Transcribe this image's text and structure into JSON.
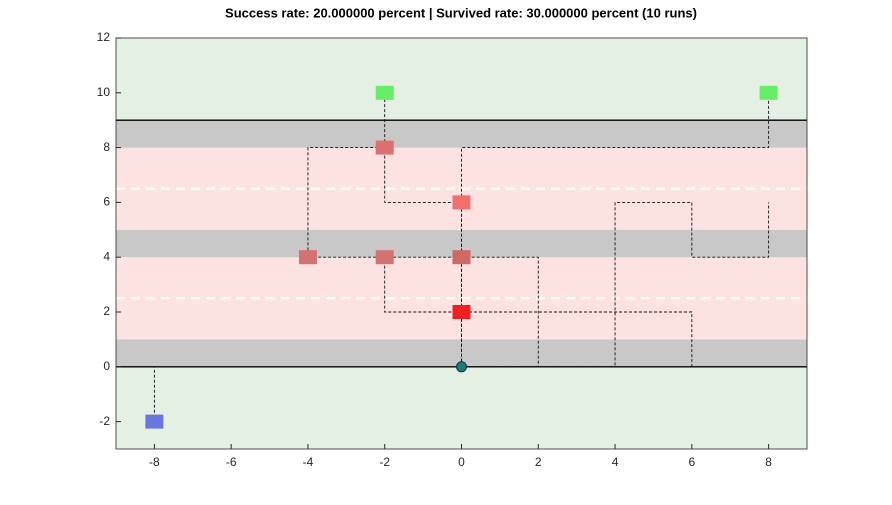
{
  "chart_data": {
    "type": "scatter",
    "title": "Success rate: 20.000000 percent | Survived rate: 30.000000 percent (10 runs)",
    "xlim": [
      -9,
      9
    ],
    "ylim": [
      -3,
      12
    ],
    "xticks": [
      -8,
      -6,
      -4,
      -2,
      0,
      2,
      4,
      6,
      8
    ],
    "yticks": [
      -2,
      0,
      2,
      4,
      6,
      8,
      10,
      12
    ],
    "background": "#e4f0e4",
    "regions": [
      {
        "y": [
          0,
          1
        ],
        "color": "#c8c8c8"
      },
      {
        "y": [
          1,
          4
        ],
        "color": "#fde2e2"
      },
      {
        "y": [
          4,
          5
        ],
        "color": "#c8c8c8"
      },
      {
        "y": [
          5,
          8
        ],
        "color": "#fde2e2"
      },
      {
        "y": [
          8,
          9
        ],
        "color": "#c8c8c8"
      }
    ],
    "dashed_lines": [
      2.5,
      6.5
    ],
    "solid_lines": [
      0,
      9
    ],
    "paths": [
      {
        "x": [
          0,
          0,
          0,
          0,
          0,
          8,
          8
        ],
        "y": [
          0,
          2,
          4,
          6,
          8,
          8,
          10
        ]
      },
      {
        "x": [
          0,
          0,
          0,
          -4,
          -4,
          -2,
          -2
        ],
        "y": [
          0,
          2,
          4,
          4,
          8,
          8,
          10
        ]
      },
      {
        "x": [
          0,
          0,
          -2,
          -2
        ],
        "y": [
          0,
          2,
          2,
          4
        ]
      },
      {
        "x": [
          0,
          0,
          0,
          0,
          -2,
          -2
        ],
        "y": [
          0,
          2,
          4,
          6,
          6,
          8
        ]
      },
      {
        "x": [
          0,
          2,
          2,
          0
        ],
        "y": [
          0,
          0,
          4,
          4
        ]
      },
      {
        "x": [
          0,
          6,
          6,
          0
        ],
        "y": [
          0,
          0,
          2,
          2
        ]
      },
      {
        "x": [
          0,
          4,
          4,
          6,
          6,
          8,
          8
        ],
        "y": [
          0,
          0,
          6,
          6,
          4,
          4,
          6
        ]
      },
      {
        "x": [
          0,
          -8,
          -8
        ],
        "y": [
          0,
          0,
          -2
        ]
      }
    ],
    "points": [
      {
        "x": -2,
        "y": 10,
        "color": "#66ee66",
        "shape": "square"
      },
      {
        "x": 8,
        "y": 10,
        "color": "#66ee66",
        "shape": "square"
      },
      {
        "x": -2,
        "y": 8,
        "color": "#dc7070",
        "shape": "square"
      },
      {
        "x": 0,
        "y": 6,
        "color": "#f07070",
        "shape": "square"
      },
      {
        "x": -4,
        "y": 4,
        "color": "#d47272",
        "shape": "square"
      },
      {
        "x": -2,
        "y": 4,
        "color": "#d47272",
        "shape": "square"
      },
      {
        "x": 0,
        "y": 4,
        "color": "#d06868",
        "shape": "square"
      },
      {
        "x": 0,
        "y": 2,
        "color": "#ee2020",
        "shape": "square"
      },
      {
        "x": -8,
        "y": -2,
        "color": "#6677dd",
        "shape": "square"
      },
      {
        "x": 0,
        "y": 0,
        "color": "#1e7a78",
        "shape": "circle"
      }
    ]
  }
}
